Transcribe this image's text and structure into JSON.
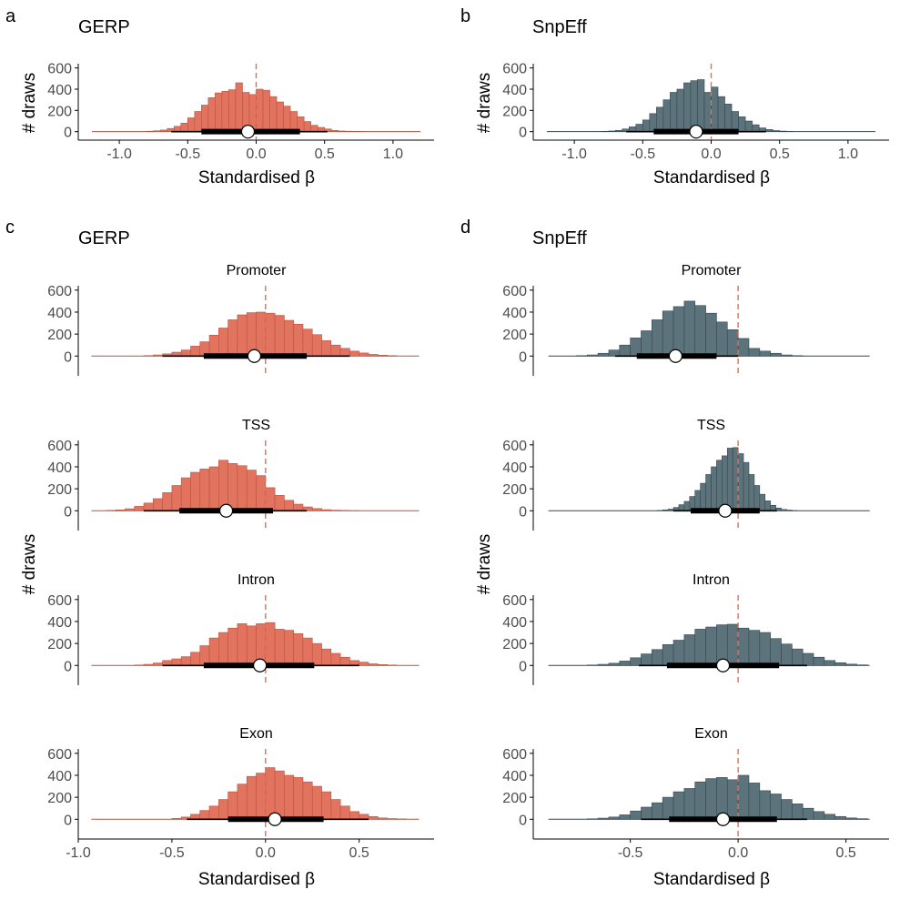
{
  "figure": {
    "panels": [
      {
        "letter": "a",
        "title": "GERP"
      },
      {
        "letter": "b",
        "title": "SnpEff"
      },
      {
        "letter": "c",
        "title": "GERP"
      },
      {
        "letter": "d",
        "title": "SnpEff"
      }
    ],
    "ylabel": "# draws",
    "xlabel": "Standardised β",
    "colors": {
      "gerp": "#e2735f",
      "gerp_edge": "#b8533f",
      "snpeff": "#5c737c",
      "snpeff_edge": "#364750",
      "zero_line": "#e07050",
      "interval": "#000000"
    }
  },
  "chart_data": [
    {
      "id": "a",
      "type": "bar",
      "subtype": "histogram",
      "title": "GERP",
      "facet": "",
      "xlabel": "Standardised β",
      "ylabel": "# draws",
      "xlim": [
        -1.3,
        1.3
      ],
      "ylim": [
        -80,
        640
      ],
      "xticks": [
        -1.0,
        -0.5,
        0.0,
        0.5,
        1.0
      ],
      "xtick_labels": [
        "-1.0",
        "-0.5",
        "0.0",
        "0.5",
        "1.0"
      ],
      "yticks": [
        0,
        200,
        400,
        600
      ],
      "ytick_labels": [
        "0",
        "200",
        "400",
        "600"
      ],
      "bin_width": 0.05,
      "bins_start": [
        -0.8,
        -0.75,
        -0.7,
        -0.65,
        -0.6,
        -0.55,
        -0.5,
        -0.45,
        -0.4,
        -0.35,
        -0.3,
        -0.25,
        -0.2,
        -0.15,
        -0.1,
        -0.05,
        0.0,
        0.05,
        0.1,
        0.15,
        0.2,
        0.25,
        0.3,
        0.35,
        0.4,
        0.45,
        0.5,
        0.55,
        0.6,
        0.65,
        0.7,
        0.75
      ],
      "counts": [
        4,
        8,
        15,
        30,
        50,
        80,
        130,
        190,
        250,
        320,
        365,
        380,
        395,
        460,
        370,
        350,
        400,
        390,
        330,
        280,
        240,
        190,
        140,
        95,
        60,
        40,
        25,
        12,
        6,
        4,
        2,
        1
      ],
      "line_range": [
        -1.2,
        1.2
      ],
      "zero_line": 0,
      "point": -0.06,
      "interval_inner": [
        -0.4,
        0.32
      ],
      "interval_outer": [
        -0.62,
        0.52
      ]
    },
    {
      "id": "b",
      "type": "bar",
      "subtype": "histogram",
      "title": "SnpEff",
      "facet": "",
      "xlabel": "Standardised β",
      "ylabel": "# draws",
      "xlim": [
        -1.3,
        1.3
      ],
      "ylim": [
        -80,
        640
      ],
      "xticks": [
        -1.0,
        -0.5,
        0.0,
        0.5,
        1.0
      ],
      "xtick_labels": [
        "-1.0",
        "-0.5",
        "0.0",
        "0.5",
        "1.0"
      ],
      "yticks": [
        0,
        200,
        400,
        600
      ],
      "ytick_labels": [
        "0",
        "200",
        "400",
        "600"
      ],
      "bin_width": 0.05,
      "bins_start": [
        -0.8,
        -0.75,
        -0.7,
        -0.65,
        -0.6,
        -0.55,
        -0.5,
        -0.45,
        -0.4,
        -0.35,
        -0.3,
        -0.25,
        -0.2,
        -0.15,
        -0.1,
        -0.05,
        0.0,
        0.05,
        0.1,
        0.15,
        0.2,
        0.25,
        0.3,
        0.35,
        0.4,
        0.45,
        0.5,
        0.55
      ],
      "counts": [
        3,
        6,
        12,
        25,
        45,
        70,
        110,
        170,
        230,
        300,
        370,
        400,
        460,
        480,
        490,
        370,
        420,
        330,
        260,
        190,
        140,
        100,
        65,
        35,
        20,
        10,
        5,
        2
      ],
      "line_range": [
        -1.2,
        1.2
      ],
      "zero_line": 0,
      "point": -0.11,
      "interval_inner": [
        -0.42,
        0.2
      ],
      "interval_outer": [
        -0.62,
        0.4
      ]
    },
    {
      "id": "c1",
      "type": "bar",
      "subtype": "histogram",
      "title": "",
      "facet": "Promoter",
      "xlabel": "",
      "ylabel": "",
      "xlim": [
        -1.0,
        0.9
      ],
      "ylim": [
        -180,
        640
      ],
      "xticks": [],
      "xtick_labels": [],
      "yticks": [
        0,
        200,
        400,
        600
      ],
      "ytick_labels": [
        "0",
        "200",
        "400",
        "600"
      ],
      "bin_width": 0.05,
      "bins_start": [
        -0.65,
        -0.6,
        -0.55,
        -0.5,
        -0.45,
        -0.4,
        -0.35,
        -0.3,
        -0.25,
        -0.2,
        -0.15,
        -0.1,
        -0.05,
        0.0,
        0.05,
        0.1,
        0.15,
        0.2,
        0.25,
        0.3,
        0.35,
        0.4,
        0.45,
        0.5,
        0.55,
        0.6,
        0.65
      ],
      "counts": [
        4,
        10,
        20,
        35,
        55,
        90,
        130,
        190,
        255,
        330,
        375,
        395,
        400,
        390,
        370,
        325,
        290,
        245,
        195,
        140,
        100,
        70,
        45,
        28,
        15,
        8,
        4
      ],
      "line_range": [
        -0.93,
        0.82
      ],
      "zero_line": 0,
      "point": -0.06,
      "interval_inner": [
        -0.33,
        0.22
      ],
      "interval_outer": [
        -0.55,
        0.45
      ]
    },
    {
      "id": "c2",
      "type": "bar",
      "subtype": "histogram",
      "title": "",
      "facet": "TSS",
      "xlabel": "",
      "ylabel": "",
      "xlim": [
        -1.0,
        0.9
      ],
      "ylim": [
        -180,
        640
      ],
      "xticks": [],
      "xtick_labels": [],
      "yticks": [
        0,
        200,
        400,
        600
      ],
      "ytick_labels": [
        "0",
        "200",
        "400",
        "600"
      ],
      "bin_width": 0.05,
      "bins_start": [
        -0.85,
        -0.8,
        -0.75,
        -0.7,
        -0.65,
        -0.6,
        -0.55,
        -0.5,
        -0.45,
        -0.4,
        -0.35,
        -0.3,
        -0.25,
        -0.2,
        -0.15,
        -0.1,
        -0.05,
        0.0,
        0.05,
        0.1,
        0.15,
        0.2,
        0.25,
        0.3,
        0.35,
        0.4,
        0.45
      ],
      "counts": [
        3,
        8,
        18,
        40,
        70,
        110,
        165,
        230,
        300,
        350,
        380,
        400,
        460,
        430,
        410,
        370,
        320,
        210,
        140,
        95,
        60,
        35,
        20,
        10,
        5,
        3,
        1
      ],
      "line_range": [
        -0.93,
        0.82
      ],
      "zero_line": 0,
      "point": -0.21,
      "interval_inner": [
        -0.46,
        0.04
      ],
      "interval_outer": [
        -0.65,
        0.22
      ]
    },
    {
      "id": "c3",
      "type": "bar",
      "subtype": "histogram",
      "title": "",
      "facet": "Intron",
      "xlabel": "",
      "ylabel": "",
      "xlim": [
        -1.0,
        0.9
      ],
      "ylim": [
        -180,
        640
      ],
      "xticks": [],
      "xtick_labels": [],
      "yticks": [
        0,
        200,
        400,
        600
      ],
      "ytick_labels": [
        "0",
        "200",
        "400",
        "600"
      ],
      "bin_width": 0.05,
      "bins_start": [
        -0.7,
        -0.65,
        -0.6,
        -0.55,
        -0.5,
        -0.45,
        -0.4,
        -0.35,
        -0.3,
        -0.25,
        -0.2,
        -0.15,
        -0.1,
        -0.05,
        0.0,
        0.05,
        0.1,
        0.15,
        0.2,
        0.25,
        0.3,
        0.35,
        0.4,
        0.45,
        0.5,
        0.55,
        0.6,
        0.65
      ],
      "counts": [
        4,
        10,
        22,
        45,
        60,
        80,
        120,
        180,
        250,
        300,
        340,
        380,
        360,
        380,
        390,
        330,
        320,
        290,
        250,
        200,
        150,
        110,
        75,
        45,
        30,
        15,
        8,
        4
      ],
      "line_range": [
        -0.93,
        0.82
      ],
      "zero_line": 0,
      "point": -0.03,
      "interval_inner": [
        -0.33,
        0.26
      ],
      "interval_outer": [
        -0.55,
        0.5
      ]
    },
    {
      "id": "c4",
      "type": "bar",
      "subtype": "histogram",
      "title": "",
      "facet": "Exon",
      "xlabel": "Standardised β",
      "ylabel": "",
      "xlim": [
        -1.0,
        0.9
      ],
      "ylim": [
        -180,
        640
      ],
      "xticks": [
        -1.0,
        -0.5,
        0.0,
        0.5
      ],
      "xtick_labels": [
        "-1.0",
        "-0.5",
        "0.0",
        "0.5"
      ],
      "yticks": [
        0,
        200,
        400,
        600
      ],
      "ytick_labels": [
        "0",
        "200",
        "400",
        "600"
      ],
      "bin_width": 0.05,
      "bins_start": [
        -0.5,
        -0.45,
        -0.4,
        -0.35,
        -0.3,
        -0.25,
        -0.2,
        -0.15,
        -0.1,
        -0.05,
        0.0,
        0.05,
        0.1,
        0.15,
        0.2,
        0.25,
        0.3,
        0.35,
        0.4,
        0.45,
        0.5,
        0.55,
        0.6,
        0.65,
        0.7
      ],
      "counts": [
        8,
        20,
        45,
        80,
        120,
        180,
        250,
        320,
        390,
        420,
        470,
        440,
        400,
        380,
        340,
        300,
        250,
        180,
        120,
        70,
        45,
        25,
        12,
        6,
        3
      ],
      "line_range": [
        -0.93,
        0.82
      ],
      "zero_line": 0,
      "point": 0.05,
      "interval_inner": [
        -0.2,
        0.31
      ],
      "interval_outer": [
        -0.42,
        0.55
      ]
    },
    {
      "id": "d1",
      "type": "bar",
      "subtype": "histogram",
      "title": "",
      "facet": "Promoter",
      "xlabel": "",
      "ylabel": "",
      "xlim": [
        -0.95,
        0.7
      ],
      "ylim": [
        -180,
        640
      ],
      "xticks": [],
      "xtick_labels": [],
      "yticks": [
        0,
        200,
        400,
        600
      ],
      "ytick_labels": [
        "0",
        "200",
        "400",
        "600"
      ],
      "bin_width": 0.05,
      "bins_start": [
        -0.75,
        -0.7,
        -0.65,
        -0.6,
        -0.55,
        -0.5,
        -0.45,
        -0.4,
        -0.35,
        -0.3,
        -0.25,
        -0.2,
        -0.15,
        -0.1,
        -0.05,
        0.0,
        0.05,
        0.1,
        0.15,
        0.2,
        0.25
      ],
      "counts": [
        4,
        10,
        25,
        55,
        100,
        165,
        230,
        330,
        410,
        450,
        500,
        460,
        390,
        310,
        240,
        160,
        70,
        45,
        25,
        10,
        4
      ],
      "line_range": [
        -0.88,
        0.61
      ],
      "zero_line": 0,
      "point": -0.29,
      "interval_inner": [
        -0.47,
        -0.1
      ],
      "interval_outer": [
        -0.57,
        0.0
      ]
    },
    {
      "id": "d2",
      "type": "bar",
      "subtype": "histogram",
      "title": "",
      "facet": "TSS",
      "xlabel": "",
      "ylabel": "",
      "xlim": [
        -0.95,
        0.7
      ],
      "ylim": [
        -180,
        640
      ],
      "xticks": [],
      "xtick_labels": [],
      "yticks": [
        0,
        200,
        400,
        600
      ],
      "ytick_labels": [
        "0",
        "200",
        "400",
        "600"
      ],
      "bin_width": 0.025,
      "bins_start": [
        -0.375,
        -0.35,
        -0.325,
        -0.3,
        -0.275,
        -0.25,
        -0.225,
        -0.2,
        -0.175,
        -0.15,
        -0.125,
        -0.1,
        -0.075,
        -0.05,
        -0.025,
        0.0,
        0.025,
        0.05,
        0.075,
        0.1,
        0.125,
        0.15,
        0.175,
        0.2,
        0.225,
        0.25
      ],
      "counts": [
        3,
        8,
        15,
        30,
        55,
        85,
        130,
        185,
        250,
        330,
        400,
        460,
        500,
        570,
        575,
        520,
        440,
        330,
        230,
        150,
        90,
        50,
        25,
        12,
        6,
        2
      ],
      "line_range": [
        -0.88,
        0.61
      ],
      "zero_line": 0,
      "point": -0.06,
      "interval_inner": [
        -0.22,
        0.1
      ],
      "interval_outer": [
        -0.3,
        0.18
      ]
    },
    {
      "id": "d3",
      "type": "bar",
      "subtype": "histogram",
      "title": "",
      "facet": "Intron",
      "xlabel": "",
      "ylabel": "",
      "xlim": [
        -0.95,
        0.7
      ],
      "ylim": [
        -180,
        640
      ],
      "xticks": [],
      "xtick_labels": [],
      "yticks": [
        0,
        200,
        400,
        600
      ],
      "ytick_labels": [
        "0",
        "200",
        "400",
        "600"
      ],
      "bin_width": 0.05,
      "bins_start": [
        -0.7,
        -0.65,
        -0.6,
        -0.55,
        -0.5,
        -0.45,
        -0.4,
        -0.35,
        -0.3,
        -0.25,
        -0.2,
        -0.15,
        -0.1,
        -0.05,
        0.0,
        0.05,
        0.1,
        0.15,
        0.2,
        0.25,
        0.3,
        0.35,
        0.4,
        0.45,
        0.5,
        0.55
      ],
      "counts": [
        4,
        10,
        20,
        40,
        70,
        105,
        145,
        190,
        230,
        280,
        330,
        350,
        370,
        375,
        340,
        320,
        300,
        245,
        195,
        150,
        110,
        75,
        45,
        25,
        12,
        5
      ],
      "line_range": [
        -0.88,
        0.61
      ],
      "zero_line": 0,
      "point": -0.07,
      "interval_inner": [
        -0.33,
        0.19
      ],
      "interval_outer": [
        -0.46,
        0.32
      ]
    },
    {
      "id": "d4",
      "type": "bar",
      "subtype": "histogram",
      "title": "",
      "facet": "Exon",
      "xlabel": "Standardised β",
      "ylabel": "",
      "xlim": [
        -0.95,
        0.7
      ],
      "ylim": [
        -180,
        640
      ],
      "xticks": [
        -0.5,
        0.0,
        0.5
      ],
      "xtick_labels": [
        "-0.5",
        "0.0",
        "0.5"
      ],
      "yticks": [
        0,
        200,
        400,
        600
      ],
      "ytick_labels": [
        "0",
        "200",
        "400",
        "600"
      ],
      "bin_width": 0.05,
      "bins_start": [
        -0.7,
        -0.65,
        -0.6,
        -0.55,
        -0.5,
        -0.45,
        -0.4,
        -0.35,
        -0.3,
        -0.25,
        -0.2,
        -0.15,
        -0.1,
        -0.05,
        0.0,
        0.05,
        0.1,
        0.15,
        0.2,
        0.25,
        0.3,
        0.35,
        0.4,
        0.45,
        0.5,
        0.55
      ],
      "counts": [
        4,
        10,
        20,
        40,
        75,
        110,
        150,
        200,
        250,
        280,
        340,
        370,
        380,
        360,
        400,
        330,
        260,
        230,
        180,
        140,
        100,
        70,
        45,
        25,
        12,
        5
      ],
      "line_range": [
        -0.88,
        0.61
      ],
      "zero_line": 0,
      "point": -0.07,
      "interval_inner": [
        -0.32,
        0.18
      ],
      "interval_outer": [
        -0.45,
        0.32
      ]
    }
  ]
}
